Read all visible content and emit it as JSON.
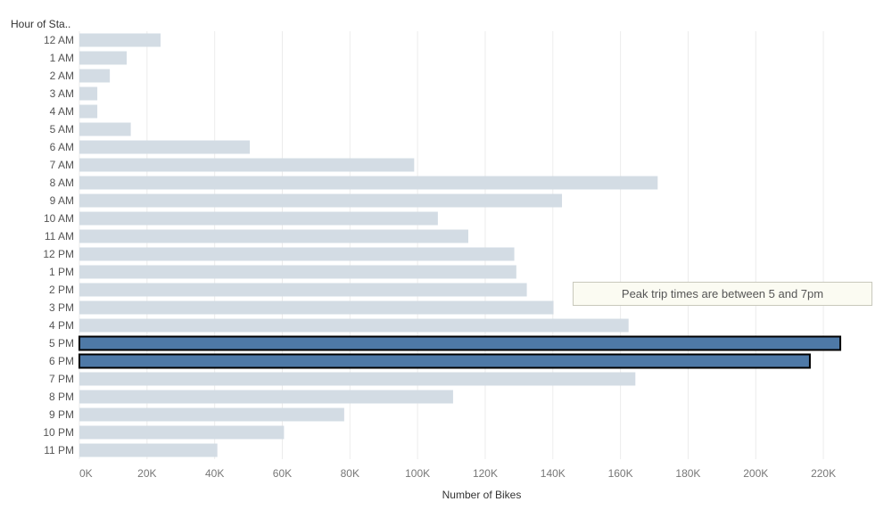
{
  "chart_data": {
    "type": "bar",
    "orientation": "horizontal",
    "title": "",
    "row_header": "Hour of Sta..",
    "xlabel": "Number of Bikes",
    "ylabel": "Hour of Start Time",
    "xlim": [
      0,
      230000
    ],
    "x_ticks": [
      0,
      20000,
      40000,
      60000,
      80000,
      100000,
      120000,
      140000,
      160000,
      180000,
      200000,
      220000
    ],
    "x_tick_labels": [
      "0K",
      "20K",
      "40K",
      "60K",
      "80K",
      "100K",
      "120K",
      "140K",
      "160K",
      "180K",
      "200K",
      "220K"
    ],
    "grid": true,
    "categories": [
      "12 AM",
      "1 AM",
      "2 AM",
      "3 AM",
      "4 AM",
      "5 AM",
      "6 AM",
      "7 AM",
      "8 AM",
      "9 AM",
      "10 AM",
      "11 AM",
      "12 PM",
      "1 PM",
      "2 PM",
      "3 PM",
      "4 PM",
      "5 PM",
      "6 PM",
      "7 PM",
      "8 PM",
      "9 PM",
      "10 PM",
      "11 PM"
    ],
    "values": [
      24000,
      14000,
      9000,
      5300,
      5300,
      15200,
      50400,
      99000,
      171000,
      142700,
      106000,
      115000,
      128600,
      129200,
      132300,
      140200,
      162400,
      225000,
      216000,
      164400,
      110500,
      78300,
      60500,
      40800
    ],
    "highlighted": [
      "5 PM",
      "6 PM"
    ],
    "colors": {
      "bar": "#d3dce4",
      "highlight": "#4e79a7",
      "highlight_outline": "#000000"
    },
    "annotation": "Peak trip times are between 5 and 7pm"
  }
}
